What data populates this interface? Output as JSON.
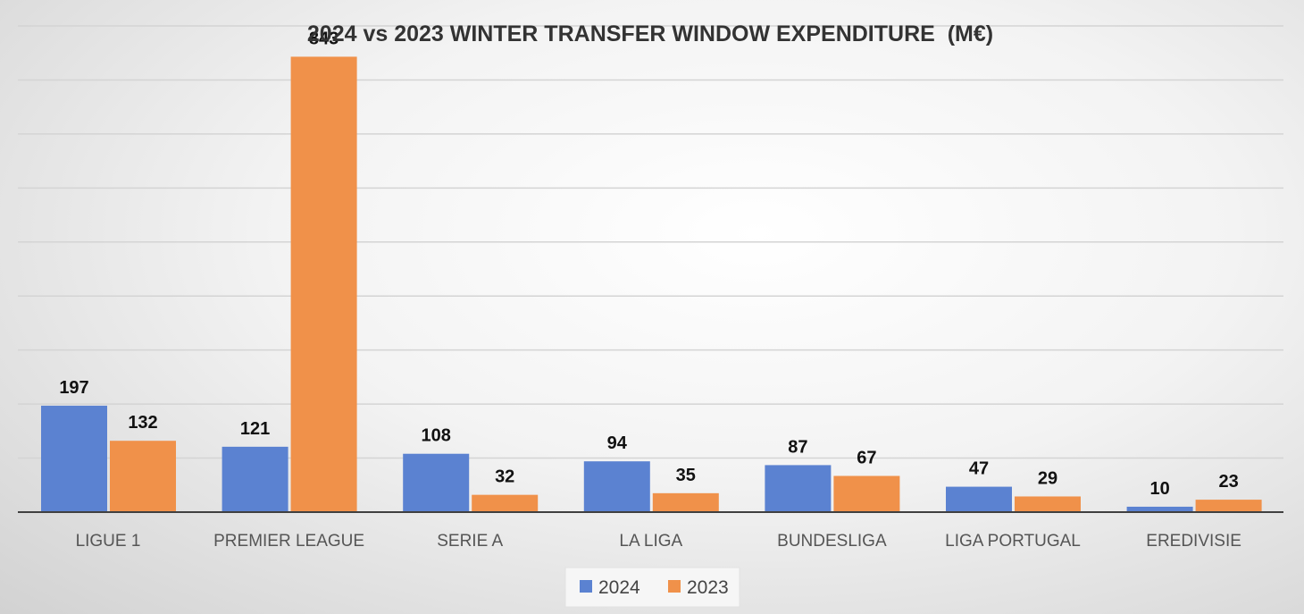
{
  "chart_data": {
    "type": "bar",
    "title": "2024 vs 2023 WINTER TRANSFER WINDOW EXPENDITURE  (M€)",
    "categories": [
      "LIGUE 1",
      "PREMIER LEAGUE",
      "SERIE A",
      "LA LIGA",
      "BUNDESLIGA",
      "LIGA PORTUGAL",
      "EREDIVISIE"
    ],
    "series": [
      {
        "name": "2024",
        "color": "#5b82d1",
        "values": [
          197,
          121,
          108,
          94,
          87,
          47,
          10
        ]
      },
      {
        "name": "2023",
        "color": "#f0914a",
        "values": [
          132,
          843,
          32,
          35,
          67,
          29,
          23
        ]
      }
    ],
    "ylim": [
      0,
      900
    ],
    "grid": true,
    "legend_position": "bottom-center",
    "data_labels": true
  }
}
